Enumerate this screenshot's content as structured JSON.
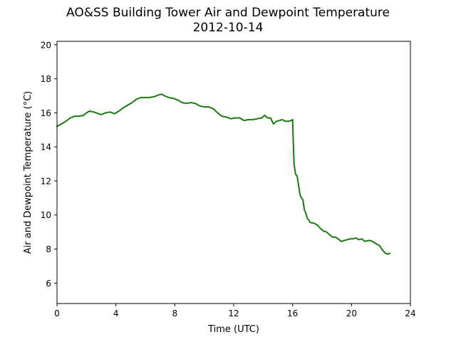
{
  "chart_data": {
    "type": "line",
    "title": "AO&SS Building Tower Air and Dewpoint Temperature",
    "subtitle": "2012-10-14",
    "xlabel": "Time (UTC)",
    "ylabel": "Air and Dewpoint Temperature (°C)",
    "xlim": [
      0,
      24
    ],
    "ylim": [
      4.8,
      20.2
    ],
    "xticks": [
      0,
      4,
      8,
      12,
      16,
      20,
      24
    ],
    "xtick_labels": [
      "0",
      "4",
      "8",
      "12",
      "16",
      "20",
      "24"
    ],
    "yticks": [
      6,
      8,
      10,
      12,
      14,
      16,
      18,
      20
    ],
    "ytick_labels": [
      "6",
      "8",
      "10",
      "12",
      "14",
      "16",
      "18",
      "20"
    ],
    "grid": false,
    "legend": "none",
    "series": [
      {
        "color": "#1a7a10",
        "x": [
          0,
          0.3,
          0.6,
          0.9,
          1.2,
          1.5,
          1.8,
          2.0,
          2.2,
          2.5,
          2.8,
          3.0,
          3.3,
          3.6,
          3.9,
          4.2,
          4.5,
          4.8,
          5.1,
          5.4,
          5.7,
          6.0,
          6.3,
          6.6,
          6.9,
          7.1,
          7.3,
          7.6,
          7.9,
          8.2,
          8.5,
          8.8,
          9.1,
          9.4,
          9.7,
          10.0,
          10.3,
          10.6,
          10.9,
          11.2,
          11.5,
          11.8,
          12.1,
          12.4,
          12.7,
          13.0,
          13.3,
          13.6,
          13.9,
          14.1,
          14.3,
          14.5,
          14.7,
          14.9,
          15.1,
          15.3,
          15.5,
          15.7,
          15.9,
          16.0,
          16.05,
          16.1,
          16.2,
          16.3,
          16.4,
          16.5,
          16.6,
          16.7,
          16.8,
          16.9,
          17.0,
          17.1,
          17.2,
          17.3,
          17.5,
          17.7,
          17.9,
          18.1,
          18.3,
          18.5,
          18.7,
          18.9,
          19.1,
          19.3,
          19.5,
          19.7,
          19.9,
          20.1,
          20.3,
          20.5,
          20.7,
          20.9,
          21.1,
          21.3,
          21.5,
          21.7,
          21.9,
          22.1,
          22.3,
          22.5,
          22.6
        ],
        "y": [
          15.2,
          15.35,
          15.5,
          15.7,
          15.8,
          15.8,
          15.85,
          16.0,
          16.1,
          16.05,
          15.95,
          15.9,
          16.0,
          16.05,
          15.95,
          16.1,
          16.3,
          16.45,
          16.6,
          16.8,
          16.9,
          16.9,
          16.9,
          16.95,
          17.05,
          17.1,
          17.0,
          16.9,
          16.85,
          16.75,
          16.6,
          16.55,
          16.6,
          16.55,
          16.4,
          16.35,
          16.35,
          16.25,
          16.0,
          15.8,
          15.75,
          15.65,
          15.7,
          15.7,
          15.55,
          15.6,
          15.6,
          15.65,
          15.7,
          15.85,
          15.7,
          15.7,
          15.35,
          15.5,
          15.55,
          15.6,
          15.5,
          15.5,
          15.55,
          15.6,
          14.2,
          13.0,
          12.4,
          12.3,
          11.8,
          11.2,
          11.0,
          10.9,
          10.3,
          10.1,
          9.8,
          9.7,
          9.55,
          9.55,
          9.5,
          9.4,
          9.2,
          9.05,
          9.0,
          8.85,
          8.7,
          8.7,
          8.6,
          8.45,
          8.5,
          8.55,
          8.6,
          8.6,
          8.65,
          8.55,
          8.6,
          8.45,
          8.5,
          8.5,
          8.4,
          8.3,
          8.2,
          7.95,
          7.75,
          7.7,
          7.75
        ]
      }
    ]
  }
}
